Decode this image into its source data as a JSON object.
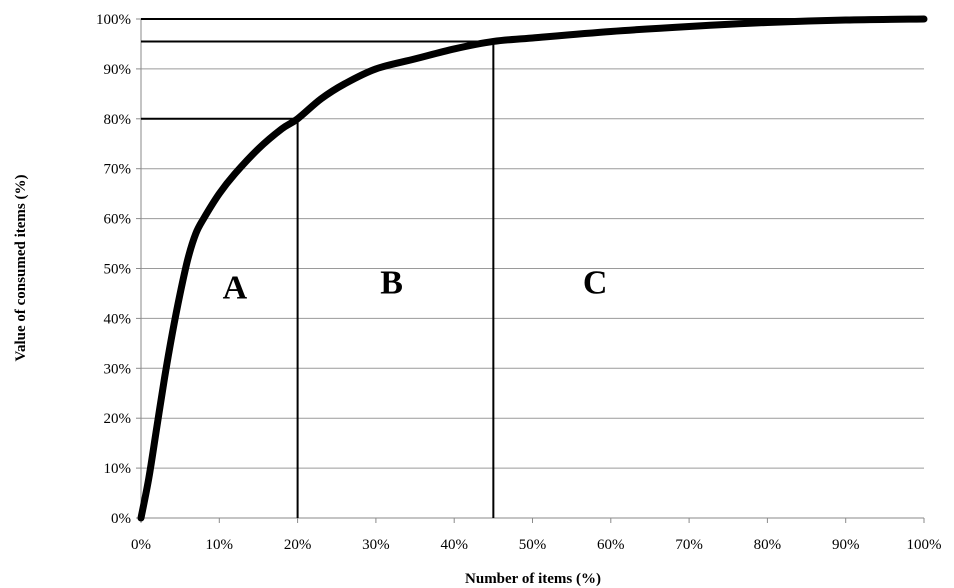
{
  "chart_data": {
    "type": "line",
    "title": "",
    "xlabel": "Number  of items (%)",
    "ylabel": "Value of consumed items (%)",
    "xlim": [
      0,
      100
    ],
    "ylim": [
      0,
      100
    ],
    "x_ticks": [
      "0%",
      "10%",
      "20%",
      "30%",
      "40%",
      "50%",
      "60%",
      "70%",
      "80%",
      "90%",
      "100%"
    ],
    "y_ticks": [
      "0%",
      "10%",
      "20%",
      "30%",
      "40%",
      "50%",
      "60%",
      "70%",
      "80%",
      "90%",
      "100%"
    ],
    "grid": "horizontal",
    "legend": "none",
    "curve_color": "#000000",
    "series": [
      {
        "x": [
          0,
          1,
          2,
          3,
          4,
          5,
          6,
          7,
          8,
          10,
          12,
          15,
          18,
          20,
          23,
          26,
          30,
          35,
          40,
          45,
          50,
          60,
          70,
          80,
          90,
          100
        ],
        "y": [
          0,
          8,
          18,
          28,
          37,
          45,
          52,
          57,
          60,
          65,
          69,
          74,
          78,
          80,
          84,
          87,
          90,
          92,
          94,
          95.5,
          96.2,
          97.5,
          98.5,
          99.3,
          99.8,
          100
        ]
      }
    ],
    "reference_lines": [
      {
        "x": 20,
        "y": 80
      },
      {
        "x": 45,
        "y": 95.5
      },
      {
        "x": 100,
        "y": 100
      }
    ],
    "regions": [
      {
        "label": "A",
        "x": 12,
        "y": 44
      },
      {
        "label": "B",
        "x": 32,
        "y": 45
      },
      {
        "label": "C",
        "x": 58,
        "y": 45
      }
    ]
  }
}
